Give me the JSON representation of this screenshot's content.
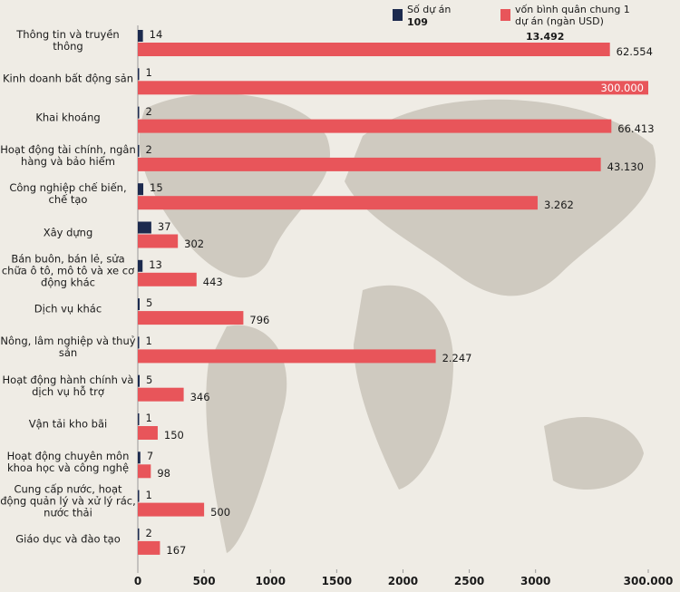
{
  "chart_data": {
    "type": "bar",
    "orientation": "horizontal",
    "categories": [
      "Thông tin và truyền thông",
      "Kinh doanh bất động sản",
      "Khai khoáng",
      "Hoạt động tài chính, ngân hàng và bảo hiểm",
      "Công nghiệp chế biến, chế tạo",
      "Xây dựng",
      "Bán buôn, bán lẻ, sửa chữa ô tô, mô tô và xe cơ động khác",
      "Dịch vụ khác",
      "Nông, lâm nghiệp và thuỷ sản",
      "Hoạt động hành chính và dịch vụ hỗ trợ",
      "Vận tải kho bãi",
      "Hoạt động chuyên môn khoa học và công nghệ",
      "Cung cấp nước, hoạt động quản lý và xử lý rác, nước thải",
      "Giáo dục và đào tạo"
    ],
    "series": [
      {
        "name": "Số dự án",
        "color": "#1c2a4e",
        "axis": "x2",
        "total": 109,
        "values": [
          14,
          1,
          2,
          2,
          15,
          37,
          13,
          5,
          1,
          5,
          1,
          7,
          1,
          2
        ]
      },
      {
        "name": "vốn bình quân chung 1 dự án (ngàn USD)",
        "color": "#e8555a",
        "total": {
          "value": 13492,
          "label": "13.492"
        },
        "values": [
          62554,
          300000,
          66413,
          43130,
          3262,
          302,
          443,
          796,
          2247,
          346,
          150,
          98,
          500,
          167
        ],
        "value_labels": [
          "62.554",
          "300.000",
          "66.413",
          "43.130",
          "3.262",
          "302",
          "443",
          "796",
          "2.247",
          "346",
          "150",
          "98",
          "500",
          "167"
        ]
      }
    ],
    "xlim": [
      0,
      300000
    ],
    "xticks": [
      0,
      500,
      1000,
      1500,
      2000,
      2500,
      3000,
      {
        "value": 300000,
        "label": "300.000"
      }
    ],
    "x2lim": [
      0,
      1400
    ]
  }
}
